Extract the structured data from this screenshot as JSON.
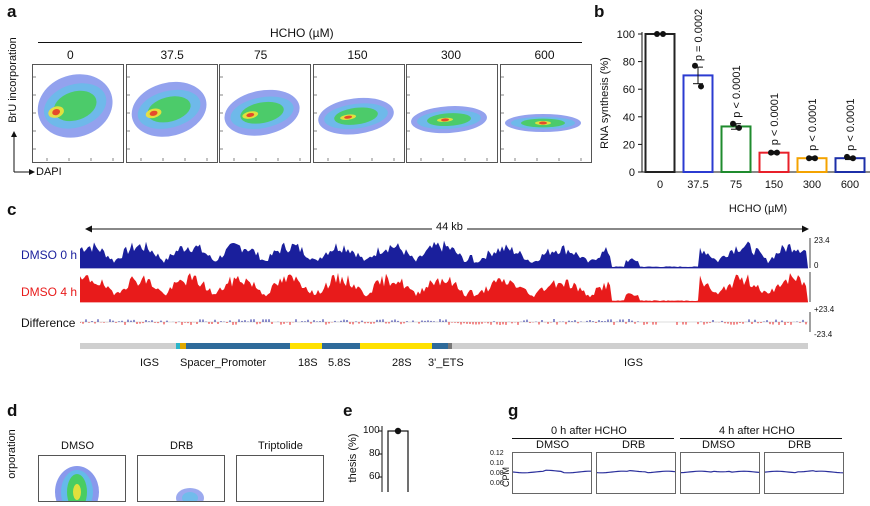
{
  "panel_labels": {
    "a": "a",
    "b": "b",
    "c": "c",
    "d": "d",
    "e": "e",
    "g": "g"
  },
  "panel_a": {
    "treatment_label": "HCHO (µM)",
    "concentrations": [
      "0",
      "37.5",
      "75",
      "150",
      "300",
      "600"
    ],
    "y_axis": "BrU incorporation",
    "x_axis": "DAPI"
  },
  "chart_data": [
    {
      "type": "bar",
      "panel": "b",
      "categories": [
        "0",
        "37.5",
        "75",
        "150",
        "300",
        "600"
      ],
      "values": [
        100,
        70,
        33,
        14,
        10,
        10
      ],
      "errors": [
        0,
        6,
        2,
        1,
        1,
        1
      ],
      "points": [
        [
          100,
          100
        ],
        [
          77,
          62
        ],
        [
          35,
          32
        ],
        [
          14,
          14
        ],
        [
          10,
          10
        ],
        [
          11,
          10
        ]
      ],
      "p_values": [
        "",
        "p = 0.0002",
        "p < 0.0001",
        "p < 0.0001",
        "p < 0.0001",
        "p < 0.0001"
      ],
      "bar_colors": [
        "#222222",
        "#2b3bd1",
        "#1f8b2e",
        "#e8202a",
        "#f4a300",
        "#1c2fa8"
      ],
      "xlabel": "HCHO (µM)",
      "ylabel": "RNA synthesis (%)",
      "ylim": [
        0,
        100
      ],
      "yticks": [
        "0",
        "20",
        "40",
        "60",
        "80",
        "100"
      ]
    }
  ],
  "panel_c": {
    "span_label": "44 kb",
    "tracks": [
      {
        "label": "DMSO 0 h",
        "color": "#1a1f9c",
        "scale_top": "23.4",
        "scale_bottom": "0"
      },
      {
        "label": "DMSO 4 h",
        "color": "#e81b1b",
        "scale_top": "",
        "scale_bottom": ""
      },
      {
        "label": "Difference",
        "color": "#111111",
        "scale_top": "+23.4",
        "scale_bottom": "-23.4"
      }
    ],
    "annotations": [
      "IGS",
      "Spacer_Promoter",
      "18S",
      "5.8S",
      "28S",
      "3'_ETS",
      "IGS"
    ]
  },
  "panel_d": {
    "y_axis": "orporation",
    "conditions": [
      "DMSO",
      "DRB",
      "Triptolide"
    ]
  },
  "panel_e": {
    "y_axis": "thesis (%)",
    "yticks": [
      "100",
      "80",
      "60"
    ],
    "value": 100
  },
  "panel_g": {
    "groups": [
      {
        "title": "0 h after HCHO",
        "conditions": [
          "DMSO",
          "DRB"
        ]
      },
      {
        "title": "4 h after HCHO",
        "conditions": [
          "DMSO",
          "DRB"
        ]
      }
    ],
    "y_axis": "CPM",
    "yticks": [
      "0.12",
      "0.10",
      "0.08",
      "0.06"
    ]
  }
}
